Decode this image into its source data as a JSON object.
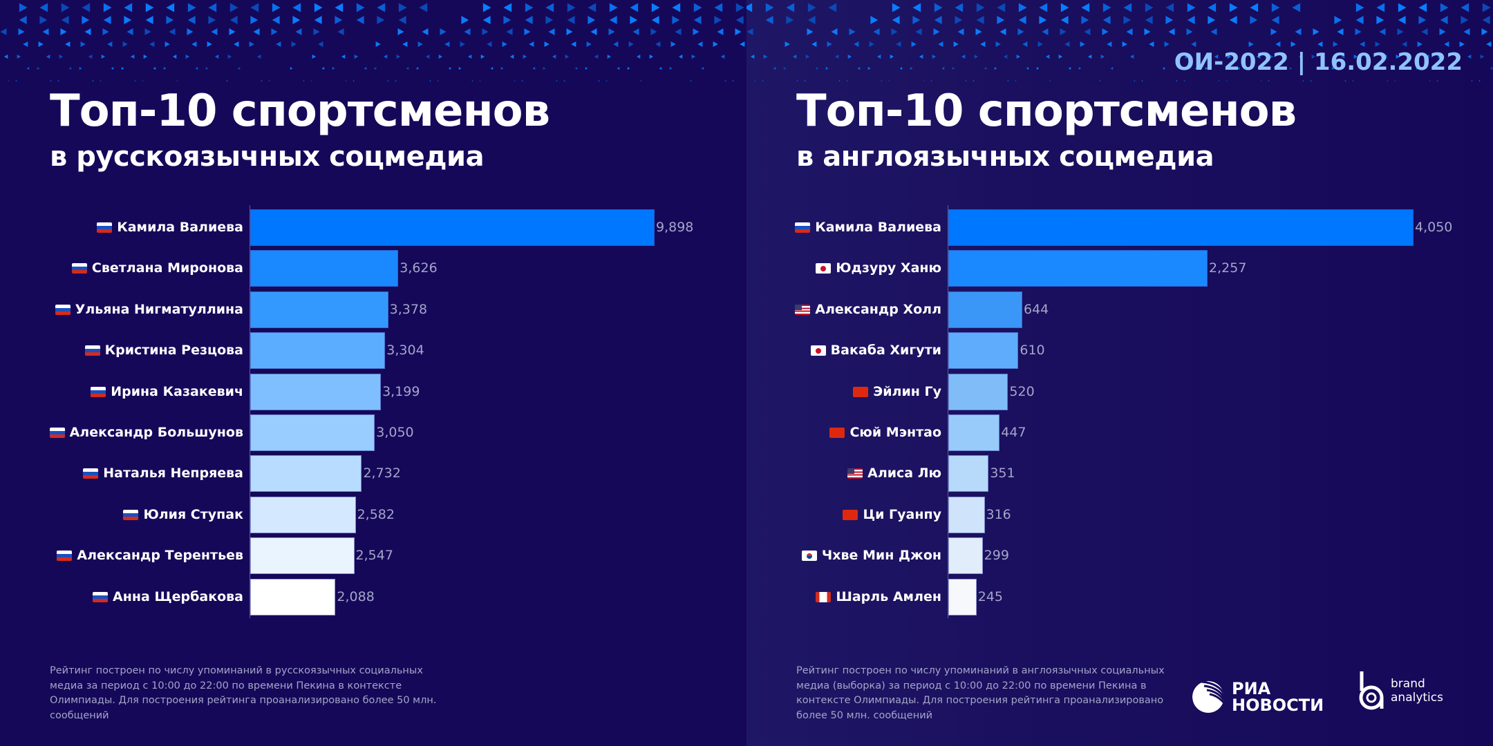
{
  "header": {
    "date_badge": "ОИ-2022 | 16.02.2022"
  },
  "panels": {
    "left": {
      "title": "Топ-10 спортсменов",
      "subtitle": "в русскоязычных соцмедиа",
      "footnote": "Рейтинг построен по числу упоминаний в русскоязычных социальных медиа за период с 10:00 до 22:00 по времени Пекина в контексте Олимпиады. Для построения рейтинга проанализировано более 50 млн. сообщений"
    },
    "right": {
      "title": "Топ-10 спортсменов",
      "subtitle": "в англоязычных соцмедиа",
      "footnote": "Рейтинг построен по числу упоминаний в англоязычных социальных медиа (выборка) за период с 10:00 до 22:00 по времени Пекина в контексте Олимпиады. Для построения рейтинга проанализировано более 50 млн. сообщений"
    }
  },
  "logos": {
    "ria_line1": "РИА",
    "ria_line2": "НОВОСТИ",
    "ria_icon": "globe-stripes-icon",
    "ba_line1": "brand",
    "ba_line2": "analytics",
    "ba_icon": "ba-monogram-icon"
  },
  "colors": {
    "background": "#160859",
    "title": "#ffffff",
    "date_badge": "#8fc3ff",
    "value_label": "#a3a6c9",
    "bar_gradient": [
      "#0077ff",
      "#1a88ff",
      "#3399ff",
      "#5badff",
      "#80bfff",
      "#99ccff",
      "#b8dcff",
      "#d4e8ff",
      "#eaf4ff",
      "#ffffff"
    ],
    "bar_gradient_right": [
      "#0077ff",
      "#1a88ff",
      "#3a97f7",
      "#5eacfb",
      "#80bdf8",
      "#99cbfa",
      "#b7d9fa",
      "#cfe3fa",
      "#e1edfa",
      "#f6f8fb"
    ]
  },
  "chart_data": [
    {
      "type": "bar",
      "orientation": "horizontal",
      "title": "Топ-10 спортсменов в русскоязычных соцмедиа",
      "xlabel": "",
      "ylabel": "",
      "xlim": [
        0,
        9898
      ],
      "grid": false,
      "categories": [
        "Камила Валиева",
        "Светлана Миронова",
        "Ульяна Нигматуллина",
        "Кристина Резцова",
        "Ирина Казакевич",
        "Александр Большунов",
        "Наталья Непряева",
        "Юлия Ступак",
        "Александр Терентьев",
        "Анна Щербакова"
      ],
      "flags": [
        "ru",
        "ru",
        "ru",
        "ru",
        "ru",
        "ru",
        "ru",
        "ru",
        "ru",
        "ru"
      ],
      "values": [
        9898,
        3626,
        3378,
        3304,
        3199,
        3050,
        2732,
        2582,
        2547,
        2088
      ],
      "value_labels": [
        "9,898",
        "3,626",
        "3,378",
        "3,304",
        "3,199",
        "3,050",
        "2,732",
        "2,582",
        "2,547",
        "2,088"
      ]
    },
    {
      "type": "bar",
      "orientation": "horizontal",
      "title": "Топ-10 спортсменов в англоязычных соцмедиа",
      "xlabel": "",
      "ylabel": "",
      "xlim": [
        0,
        4050
      ],
      "grid": false,
      "categories": [
        "Камила Валиева",
        "Юдзуру Ханю",
        "Александр Холл",
        "Вакаба Хигути",
        "Эйлин Гу",
        "Сюй Мэнтао",
        "Алиса Лю",
        "Ци Гуанпу",
        "Чхве Мин Джон",
        "Шарль Амлен"
      ],
      "flags": [
        "ru",
        "jp",
        "us",
        "jp",
        "cn",
        "cn",
        "us",
        "cn",
        "kr",
        "ca"
      ],
      "values": [
        4050,
        2257,
        644,
        610,
        520,
        447,
        351,
        316,
        299,
        245
      ],
      "value_labels": [
        "4,050",
        "2,257",
        "644",
        "610",
        "520",
        "447",
        "351",
        "316",
        "299",
        "245"
      ]
    }
  ]
}
